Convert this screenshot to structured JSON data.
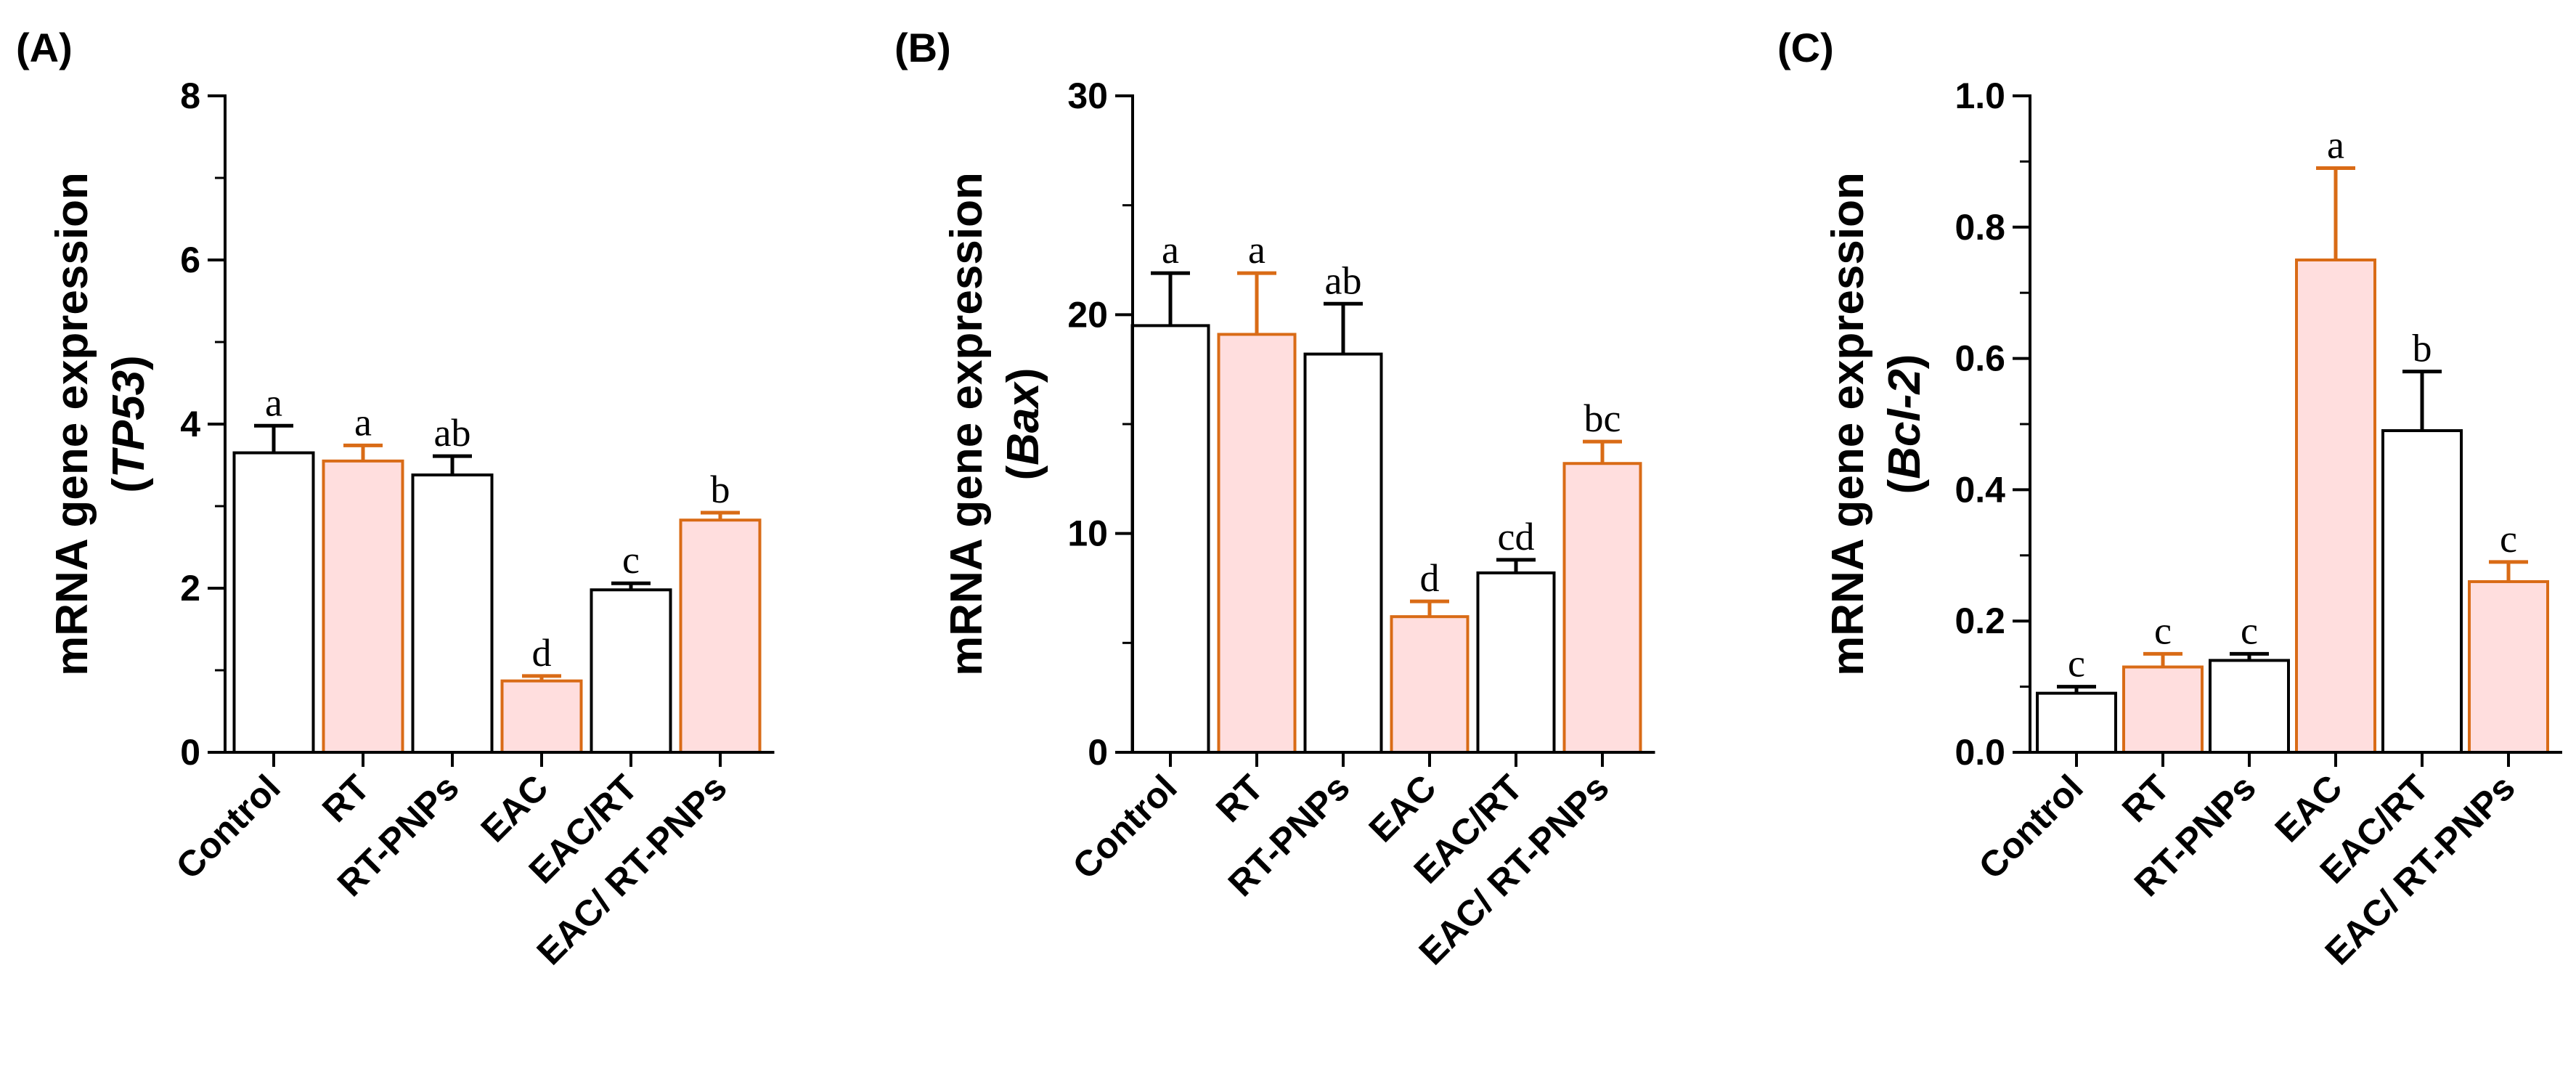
{
  "colors": {
    "white_fill": "#ffffff",
    "pink_fill": "#ffdede",
    "black_stroke": "#000000",
    "orange_stroke": "#d96b16"
  },
  "chart_data": [
    {
      "type": "bar",
      "panel_label": "(A)",
      "ylabel_line1": "mRNA gene expression",
      "ylabel_gene": "TP53",
      "categories": [
        "Control",
        "RT",
        "RT-PNPs",
        "EAC",
        "EAC/RT",
        "EAC/ RT-PNPs"
      ],
      "values": [
        3.65,
        3.55,
        3.38,
        0.87,
        1.98,
        2.83
      ],
      "errors": [
        0.33,
        0.19,
        0.23,
        0.06,
        0.08,
        0.09
      ],
      "significance": [
        "a",
        "a",
        "ab",
        "d",
        "c",
        "b"
      ],
      "fill_style": [
        "white",
        "pink",
        "white",
        "pink",
        "white",
        "pink"
      ],
      "ylim": [
        0,
        8
      ],
      "yticks": [
        "0",
        "2",
        "4",
        "6",
        "8"
      ],
      "ytick_values": [
        0,
        2,
        4,
        6,
        8
      ],
      "minor_step": 1
    },
    {
      "type": "bar",
      "panel_label": "(B)",
      "ylabel_line1": "mRNA gene expression",
      "ylabel_gene": "Bax",
      "categories": [
        "Control",
        "RT",
        "RT-PNPs",
        "EAC",
        "EAC/RT",
        "EAC/ RT-PNPs"
      ],
      "values": [
        19.5,
        19.1,
        18.2,
        6.2,
        8.2,
        13.2
      ],
      "errors": [
        2.4,
        2.8,
        2.3,
        0.7,
        0.6,
        1.0
      ],
      "significance": [
        "a",
        "a",
        "ab",
        "d",
        "cd",
        "bc"
      ],
      "fill_style": [
        "white",
        "pink",
        "white",
        "pink",
        "white",
        "pink"
      ],
      "ylim": [
        0,
        30
      ],
      "yticks": [
        "0",
        "10",
        "20",
        "30"
      ],
      "ytick_values": [
        0,
        10,
        20,
        30
      ],
      "minor_step": 5
    },
    {
      "type": "bar",
      "panel_label": "(C)",
      "ylabel_line1": "mRNA gene expression",
      "ylabel_gene": "Bcl-2",
      "categories": [
        "Control",
        "RT",
        "RT-PNPs",
        "EAC",
        "EAC/RT",
        "EAC/ RT-PNPs"
      ],
      "values": [
        0.09,
        0.13,
        0.14,
        0.75,
        0.49,
        0.26
      ],
      "errors": [
        0.01,
        0.02,
        0.01,
        0.14,
        0.09,
        0.03
      ],
      "significance": [
        "c",
        "c",
        "c",
        "a",
        "b",
        "c"
      ],
      "fill_style": [
        "white",
        "pink",
        "white",
        "pink",
        "white",
        "pink"
      ],
      "ylim": [
        0,
        1.0
      ],
      "yticks": [
        "0.0",
        "0.2",
        "0.4",
        "0.6",
        "0.8",
        "1.0"
      ],
      "ytick_values": [
        0,
        0.2,
        0.4,
        0.6,
        0.8,
        1.0
      ],
      "minor_step": 0.1
    }
  ]
}
